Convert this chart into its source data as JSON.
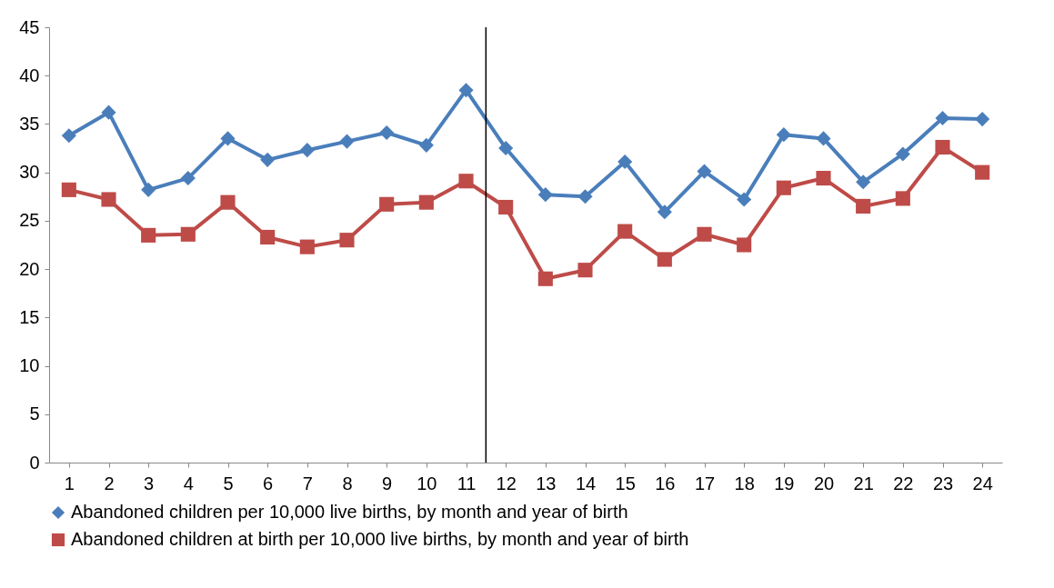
{
  "chart_data": {
    "type": "line",
    "x": [
      1,
      2,
      3,
      4,
      5,
      6,
      7,
      8,
      9,
      10,
      11,
      12,
      13,
      14,
      15,
      16,
      17,
      18,
      19,
      20,
      21,
      22,
      23,
      24
    ],
    "xlim": [
      0.5,
      24.5
    ],
    "xticks": [
      1,
      2,
      3,
      4,
      5,
      6,
      7,
      8,
      9,
      10,
      11,
      12,
      13,
      14,
      15,
      16,
      17,
      18,
      19,
      20,
      21,
      22,
      23,
      24
    ],
    "ylim": [
      0,
      45
    ],
    "yticks": [
      0,
      5,
      10,
      15,
      20,
      25,
      30,
      35,
      40,
      45
    ],
    "grid": false,
    "legend": "bottom",
    "series": [
      {
        "name": "Abandoned children per 10,000 live births, by month and year of birth",
        "color": "#4a7ebb",
        "marker": "diamond",
        "values": [
          33.8,
          36.2,
          28.2,
          29.4,
          33.5,
          31.3,
          32.3,
          33.2,
          34.1,
          32.8,
          38.5,
          32.5,
          27.7,
          27.5,
          31.1,
          25.9,
          30.1,
          27.2,
          33.9,
          33.5,
          29.0,
          31.9,
          35.6,
          35.5
        ]
      },
      {
        "name": "Abandoned children at birth per 10,000 live births, by month and year of birth",
        "color": "#be4b48",
        "marker": "square",
        "values": [
          28.2,
          27.2,
          23.5,
          23.6,
          26.9,
          23.3,
          22.3,
          23.0,
          26.7,
          26.9,
          29.1,
          26.4,
          19.0,
          19.9,
          23.9,
          21.0,
          23.6,
          22.5,
          28.4,
          29.4,
          26.5,
          27.3,
          32.6,
          30.0
        ]
      }
    ],
    "ref_lines": [
      {
        "axis": "x",
        "value": 11.5,
        "color": "#000000"
      }
    ]
  }
}
